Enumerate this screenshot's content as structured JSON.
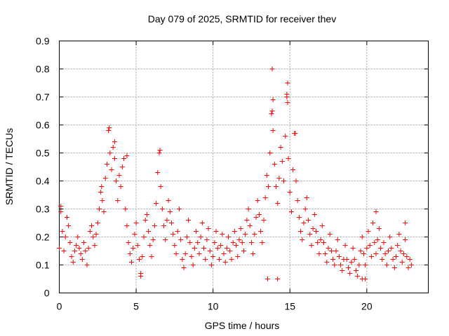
{
  "chart_data": {
    "type": "scatter",
    "title": "Day 079 of 2025, SRMTID for receiver thev",
    "xlabel": "GPS time / hours",
    "ylabel": "SRMTID / TECUs",
    "xlim": [
      0,
      24
    ],
    "ylim": [
      0,
      0.9
    ],
    "xticks": [
      0,
      5,
      10,
      15,
      20
    ],
    "yticks": [
      0,
      0.1,
      0.2,
      0.3,
      0.4,
      0.5,
      0.6,
      0.7,
      0.8,
      0.9
    ],
    "grid": true,
    "marker": "+",
    "color": "#ff0000",
    "series": [
      {
        "name": "SRMTID",
        "points": [
          [
            0.0,
            0.16
          ],
          [
            0.1,
            0.29
          ],
          [
            0.2,
            0.22
          ],
          [
            0.3,
            0.15
          ],
          [
            0.4,
            0.2
          ],
          [
            0.5,
            0.27
          ],
          [
            0.6,
            0.24
          ],
          [
            0.7,
            0.18
          ],
          [
            0.8,
            0.13
          ],
          [
            0.9,
            0.11
          ],
          [
            1.0,
            0.15
          ],
          [
            1.1,
            0.17
          ],
          [
            1.2,
            0.2
          ],
          [
            1.3,
            0.16
          ],
          [
            1.4,
            0.14
          ],
          [
            1.5,
            0.12
          ],
          [
            1.6,
            0.18
          ],
          [
            1.7,
            0.15
          ],
          [
            1.8,
            0.1
          ],
          [
            1.9,
            0.16
          ],
          [
            2.0,
            0.22
          ],
          [
            2.1,
            0.24
          ],
          [
            2.2,
            0.2
          ],
          [
            2.3,
            0.17
          ],
          [
            2.4,
            0.21
          ],
          [
            2.5,
            0.25
          ],
          [
            2.6,
            0.3
          ],
          [
            2.7,
            0.36
          ],
          [
            2.8,
            0.33
          ],
          [
            2.9,
            0.29
          ],
          [
            3.0,
            0.41
          ],
          [
            3.1,
            0.46
          ],
          [
            3.2,
            0.58
          ],
          [
            3.3,
            0.5
          ],
          [
            3.4,
            0.44
          ],
          [
            3.5,
            0.52
          ],
          [
            3.6,
            0.48
          ],
          [
            3.7,
            0.4
          ],
          [
            3.8,
            0.33
          ],
          [
            3.9,
            0.42
          ],
          [
            4.0,
            0.38
          ],
          [
            4.1,
            0.45
          ],
          [
            4.2,
            0.48
          ],
          [
            4.3,
            0.3
          ],
          [
            4.4,
            0.24
          ],
          [
            4.5,
            0.18
          ],
          [
            4.6,
            0.14
          ],
          [
            4.7,
            0.11
          ],
          [
            4.8,
            0.16
          ],
          [
            4.9,
            0.21
          ],
          [
            5.0,
            0.25
          ],
          [
            5.1,
            0.17
          ],
          [
            5.2,
            0.12
          ],
          [
            5.3,
            0.07
          ],
          [
            5.4,
            0.13
          ],
          [
            5.5,
            0.2
          ],
          [
            5.6,
            0.26
          ],
          [
            5.7,
            0.28
          ],
          [
            5.8,
            0.22
          ],
          [
            5.9,
            0.17
          ],
          [
            6.0,
            0.13
          ],
          [
            6.1,
            0.19
          ],
          [
            6.2,
            0.24
          ],
          [
            6.3,
            0.32
          ],
          [
            6.4,
            0.43
          ],
          [
            6.5,
            0.5
          ],
          [
            6.6,
            0.38
          ],
          [
            6.7,
            0.3
          ],
          [
            6.8,
            0.24
          ],
          [
            6.9,
            0.19
          ],
          [
            7.0,
            0.26
          ],
          [
            7.1,
            0.33
          ],
          [
            7.2,
            0.29
          ],
          [
            7.3,
            0.25
          ],
          [
            7.4,
            0.21
          ],
          [
            7.5,
            0.17
          ],
          [
            7.6,
            0.14
          ],
          [
            7.7,
            0.22
          ],
          [
            7.8,
            0.3
          ],
          [
            7.9,
            0.19
          ],
          [
            8.0,
            0.12
          ],
          [
            8.1,
            0.09
          ],
          [
            8.2,
            0.14
          ],
          [
            8.3,
            0.2
          ],
          [
            8.4,
            0.26
          ],
          [
            8.5,
            0.18
          ],
          [
            8.6,
            0.13
          ],
          [
            8.7,
            0.1
          ],
          [
            8.8,
            0.16
          ],
          [
            8.9,
            0.22
          ],
          [
            9.0,
            0.18
          ],
          [
            9.1,
            0.14
          ],
          [
            9.2,
            0.2
          ],
          [
            9.3,
            0.25
          ],
          [
            9.4,
            0.16
          ],
          [
            9.5,
            0.12
          ],
          [
            9.6,
            0.19
          ],
          [
            9.7,
            0.23
          ],
          [
            9.8,
            0.15
          ],
          [
            9.9,
            0.1
          ],
          [
            10.0,
            0.13
          ],
          [
            10.1,
            0.18
          ],
          [
            10.2,
            0.22
          ],
          [
            10.3,
            0.16
          ],
          [
            10.4,
            0.12
          ],
          [
            10.5,
            0.17
          ],
          [
            10.6,
            0.21
          ],
          [
            10.7,
            0.14
          ],
          [
            10.8,
            0.11
          ],
          [
            10.9,
            0.16
          ],
          [
            11.0,
            0.2
          ],
          [
            11.1,
            0.15
          ],
          [
            11.2,
            0.12
          ],
          [
            11.3,
            0.18
          ],
          [
            11.4,
            0.22
          ],
          [
            11.5,
            0.17
          ],
          [
            11.6,
            0.13
          ],
          [
            11.7,
            0.19
          ],
          [
            11.8,
            0.23
          ],
          [
            11.9,
            0.18
          ],
          [
            12.0,
            0.15
          ],
          [
            12.1,
            0.21
          ],
          [
            12.2,
            0.26
          ],
          [
            12.3,
            0.3
          ],
          [
            12.4,
            0.24
          ],
          [
            12.5,
            0.18
          ],
          [
            12.6,
            0.14
          ],
          [
            12.7,
            0.21
          ],
          [
            12.8,
            0.27
          ],
          [
            12.9,
            0.33
          ],
          [
            13.0,
            0.28
          ],
          [
            13.1,
            0.22
          ],
          [
            13.2,
            0.18
          ],
          [
            13.3,
            0.26
          ],
          [
            13.4,
            0.34
          ],
          [
            13.5,
            0.42
          ],
          [
            13.6,
            0.38
          ],
          [
            13.7,
            0.5
          ],
          [
            13.8,
            0.64
          ],
          [
            13.9,
            0.58
          ],
          [
            14.0,
            0.46
          ],
          [
            14.1,
            0.38
          ],
          [
            14.2,
            0.32
          ],
          [
            14.3,
            0.41
          ],
          [
            14.4,
            0.52
          ],
          [
            14.5,
            0.47
          ],
          [
            14.6,
            0.4
          ],
          [
            14.7,
            0.56
          ],
          [
            14.8,
            0.7
          ],
          [
            14.9,
            0.48
          ],
          [
            15.0,
            0.36
          ],
          [
            15.1,
            0.29
          ],
          [
            15.2,
            0.44
          ],
          [
            15.3,
            0.57
          ],
          [
            15.4,
            0.4
          ],
          [
            15.5,
            0.33
          ],
          [
            15.6,
            0.27
          ],
          [
            15.7,
            0.22
          ],
          [
            15.8,
            0.19
          ],
          [
            15.9,
            0.25
          ],
          [
            16.0,
            0.3
          ],
          [
            16.1,
            0.34
          ],
          [
            16.2,
            0.26
          ],
          [
            16.3,
            0.21
          ],
          [
            16.4,
            0.17
          ],
          [
            16.5,
            0.23
          ],
          [
            16.6,
            0.28
          ],
          [
            16.7,
            0.22
          ],
          [
            16.8,
            0.18
          ],
          [
            16.9,
            0.14
          ],
          [
            17.0,
            0.19
          ],
          [
            17.1,
            0.24
          ],
          [
            17.2,
            0.18
          ],
          [
            17.3,
            0.14
          ],
          [
            17.4,
            0.11
          ],
          [
            17.5,
            0.16
          ],
          [
            17.6,
            0.21
          ],
          [
            17.7,
            0.15
          ],
          [
            17.8,
            0.12
          ],
          [
            17.9,
            0.1
          ],
          [
            18.0,
            0.15
          ],
          [
            18.1,
            0.19
          ],
          [
            18.2,
            0.13
          ],
          [
            18.3,
            0.1
          ],
          [
            18.4,
            0.08
          ],
          [
            18.5,
            0.12
          ],
          [
            18.6,
            0.17
          ],
          [
            18.7,
            0.12
          ],
          [
            18.8,
            0.09
          ],
          [
            18.9,
            0.07
          ],
          [
            19.0,
            0.11
          ],
          [
            19.1,
            0.16
          ],
          [
            19.2,
            0.12
          ],
          [
            19.3,
            0.08
          ],
          [
            19.4,
            0.06
          ],
          [
            19.5,
            0.1
          ],
          [
            19.6,
            0.15
          ],
          [
            19.7,
            0.2
          ],
          [
            19.8,
            0.14
          ],
          [
            19.9,
            0.1
          ],
          [
            20.0,
            0.16
          ],
          [
            20.1,
            0.22
          ],
          [
            20.2,
            0.17
          ],
          [
            20.3,
            0.13
          ],
          [
            20.4,
            0.25
          ],
          [
            20.5,
            0.18
          ],
          [
            20.6,
            0.14
          ],
          [
            20.7,
            0.19
          ],
          [
            20.8,
            0.23
          ],
          [
            20.9,
            0.16
          ],
          [
            21.0,
            0.12
          ],
          [
            21.1,
            0.18
          ],
          [
            21.2,
            0.14
          ],
          [
            21.3,
            0.1
          ],
          [
            21.4,
            0.15
          ],
          [
            21.5,
            0.2
          ],
          [
            21.6,
            0.16
          ],
          [
            21.7,
            0.12
          ],
          [
            21.8,
            0.09
          ],
          [
            21.9,
            0.13
          ],
          [
            22.0,
            0.17
          ],
          [
            22.1,
            0.21
          ],
          [
            22.2,
            0.15
          ],
          [
            22.3,
            0.11
          ],
          [
            22.4,
            0.14
          ],
          [
            22.5,
            0.19
          ],
          [
            22.6,
            0.13
          ],
          [
            22.7,
            0.09
          ],
          [
            22.8,
            0.12
          ],
          [
            22.9,
            0.1
          ],
          [
            13.85,
            0.8
          ],
          [
            14.85,
            0.75
          ],
          [
            14.8,
            0.71
          ],
          [
            14.85,
            0.68
          ],
          [
            13.9,
            0.69
          ],
          [
            13.85,
            0.65
          ],
          [
            3.25,
            0.59
          ],
          [
            6.55,
            0.51
          ],
          [
            15.35,
            0.57
          ],
          [
            3.6,
            0.54
          ],
          [
            4.4,
            0.49
          ],
          [
            0.1,
            0.31
          ],
          [
            2.75,
            0.38
          ],
          [
            5.3,
            0.06
          ],
          [
            14.2,
            0.05
          ],
          [
            19.9,
            0.05
          ],
          [
            20.6,
            0.29
          ],
          [
            22.5,
            0.25
          ],
          [
            13.55,
            0.05
          ],
          [
            19.7,
            0.05
          ]
        ]
      }
    ]
  }
}
